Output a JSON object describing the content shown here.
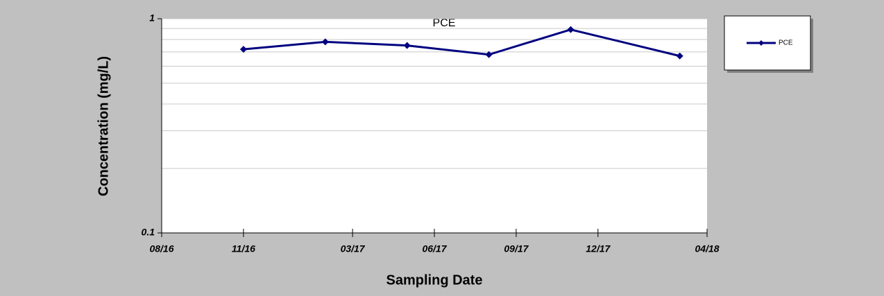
{
  "chart_data": {
    "type": "line",
    "title": "PCE",
    "x_label": "Sampling Date",
    "y_label": "Concentration (mg/L)",
    "x": [
      "11/16",
      "02/17",
      "05/17",
      "08/17",
      "11/17",
      "03/18"
    ],
    "series": [
      {
        "name": "PCE",
        "color": "#000080",
        "values": [
          0.72,
          0.78,
          0.75,
          0.68,
          0.89,
          0.67
        ]
      }
    ],
    "xlim": [
      "08/16",
      "04/18"
    ],
    "xticks": [
      "08/16",
      "11/16",
      "03/17",
      "06/17",
      "09/17",
      "12/17",
      "04/18"
    ],
    "ylim": [
      0.1,
      1
    ],
    "yticks": [
      0.1,
      1
    ],
    "yminorticks": [
      0.2,
      0.3,
      0.4,
      0.5,
      0.6,
      0.7,
      0.8,
      0.9
    ],
    "log_y": true,
    "grid": true,
    "legend": "right"
  }
}
